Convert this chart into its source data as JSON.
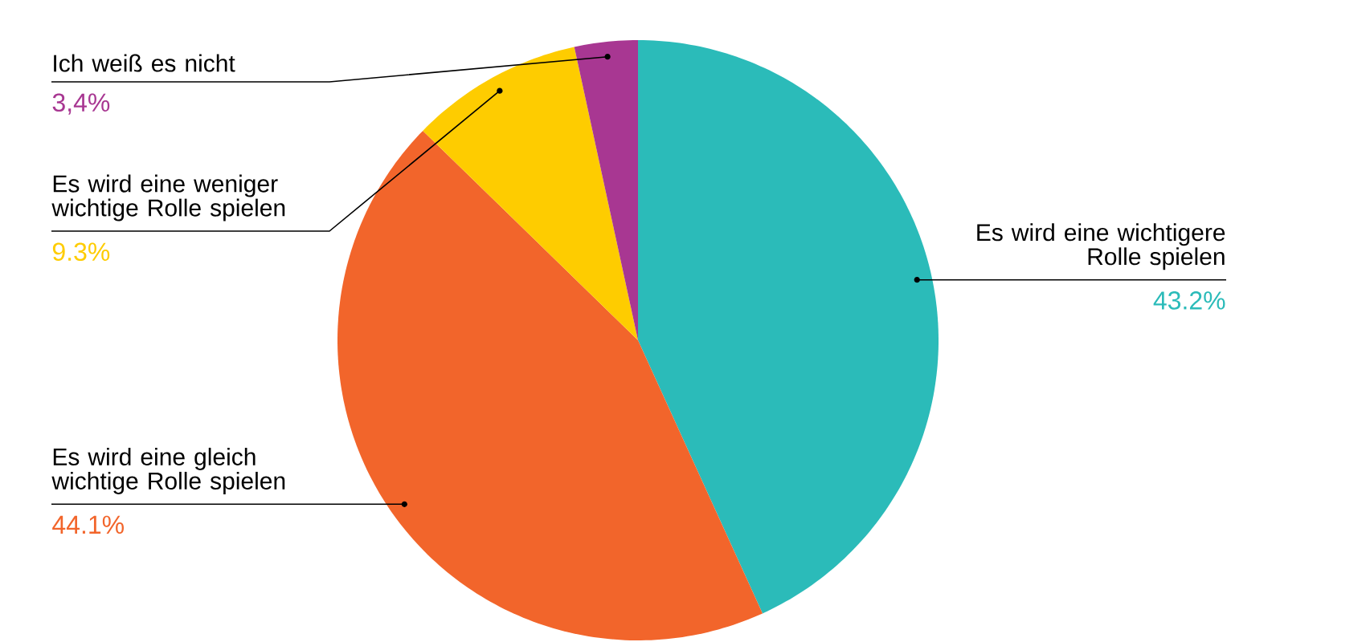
{
  "chart_data": {
    "type": "pie",
    "categories": [
      "Es wird eine wichtigere Rolle spielen",
      "Es wird eine gleich wichtige Rolle spielen",
      "Es wird eine weniger wichtige Rolle spielen",
      "Ich weiß es nicht"
    ],
    "values": [
      43.2,
      44.1,
      9.3,
      3.4
    ],
    "colors": [
      "#2bbbb9",
      "#f2652b",
      "#fecc00",
      "#a83792"
    ],
    "value_labels": [
      "43.2%",
      "44.1%",
      "9.3%",
      "3,4%"
    ]
  }
}
